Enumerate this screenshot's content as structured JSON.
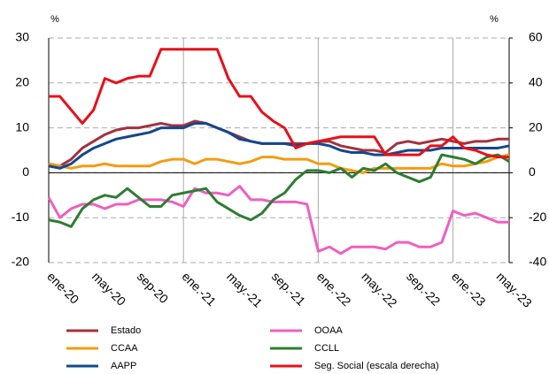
{
  "chart_data": {
    "type": "line",
    "y_unit": "%",
    "y2_unit": "%",
    "categories": [
      "ene-20",
      null,
      null,
      null,
      "may-20",
      null,
      null,
      null,
      "sep-20",
      null,
      null,
      null,
      "ene.-21",
      null,
      null,
      null,
      "may.-21",
      null,
      null,
      null,
      "sep.-21",
      null,
      null,
      null,
      "ene.-22",
      null,
      null,
      null,
      "may.-22",
      null,
      null,
      null,
      "sep.-22",
      null,
      null,
      null,
      "ene.-23",
      null,
      null,
      null,
      "may.-23",
      null
    ],
    "ylim": [
      -20,
      30
    ],
    "yticks": [
      -20,
      -10,
      0,
      10,
      20,
      30
    ],
    "y2lim": [
      -40,
      60
    ],
    "y2ticks": [
      -40,
      -20,
      0,
      20,
      40,
      60
    ],
    "grid": true,
    "legend": "bottom",
    "series": [
      {
        "name": "Estado",
        "color": "#a2323d",
        "values": [
          2,
          1.5,
          3,
          5.5,
          7,
          8.5,
          9.5,
          10,
          10,
          10.5,
          11,
          10.5,
          10.5,
          11.5,
          11,
          10,
          9,
          8,
          7,
          6.5,
          6.5,
          6.5,
          6.5,
          6.5,
          7,
          7,
          6,
          5.5,
          5,
          5,
          4.5,
          6.5,
          7,
          6.5,
          7,
          7.5,
          7,
          6.5,
          7,
          7,
          7.5,
          7.5
        ]
      },
      {
        "name": "OOAA",
        "color": "#f05fc0",
        "values": [
          -5.5,
          -10,
          -8,
          -7,
          -7,
          -8,
          -7,
          -7,
          -6,
          -6,
          -6,
          -6.5,
          -7.5,
          -3.5,
          -4.5,
          -4.5,
          -5,
          -3,
          -6,
          -6,
          -6.5,
          -6.5,
          -6.5,
          -7,
          -17.5,
          -16.5,
          -18,
          -16.5,
          -16.5,
          -16.5,
          -17,
          -15.5,
          -15.5,
          -16.5,
          -16.5,
          -15.5,
          -8.5,
          -9.5,
          -9,
          -10,
          -11,
          -11
        ]
      },
      {
        "name": "CCAA",
        "color": "#f39c12",
        "values": [
          2,
          1.5,
          1,
          1.5,
          1.5,
          2,
          1.5,
          1.5,
          1.5,
          1.5,
          2.5,
          3,
          3,
          2,
          3,
          3,
          2.5,
          2,
          2.5,
          3.5,
          3.5,
          3,
          3,
          3,
          2,
          2,
          1,
          0.5,
          0,
          1,
          1,
          1,
          1,
          1,
          1,
          2,
          1.5,
          1.5,
          2,
          2.5,
          3.5,
          4
        ]
      },
      {
        "name": "CCLL",
        "color": "#2e7d32",
        "values": [
          -10.5,
          -11,
          -12,
          -8,
          -6,
          -5,
          -5.5,
          -3.5,
          -5.5,
          -7.5,
          -7.5,
          -5,
          -4.5,
          -4,
          -3.5,
          -6.5,
          -8,
          -9.5,
          -10.5,
          -9,
          -6,
          -4.5,
          -1.5,
          0.5,
          0.5,
          0,
          1,
          -1,
          1,
          0.5,
          2,
          0,
          -1,
          -2,
          -1,
          4,
          3.5,
          3,
          2,
          3.5,
          4,
          2.5
        ]
      },
      {
        "name": "AAPP",
        "color": "#13488c",
        "values": [
          1.5,
          1,
          2,
          4,
          5.5,
          6.5,
          7.5,
          8,
          8.5,
          9,
          10,
          10,
          10,
          11,
          11,
          10,
          9,
          7.5,
          7,
          6.5,
          6.5,
          6.5,
          6,
          6.5,
          6.5,
          6,
          5,
          4.5,
          4.5,
          4,
          4,
          4.5,
          5,
          5,
          5,
          5.5,
          5.5,
          5.5,
          5.5,
          5.5,
          5.5,
          6
        ]
      },
      {
        "name": "Seg. Social (escala derecha)",
        "color": "#e8101a",
        "axis": "y2",
        "values": [
          34,
          34,
          28,
          22,
          28,
          42,
          40,
          42,
          43,
          43,
          55,
          55,
          55,
          55,
          55,
          55,
          42,
          34,
          34,
          27,
          23,
          20,
          11,
          13,
          14,
          15,
          16,
          16,
          16,
          16,
          8,
          8,
          8,
          8,
          12,
          12,
          16,
          11,
          10,
          8,
          7,
          7
        ]
      }
    ]
  }
}
